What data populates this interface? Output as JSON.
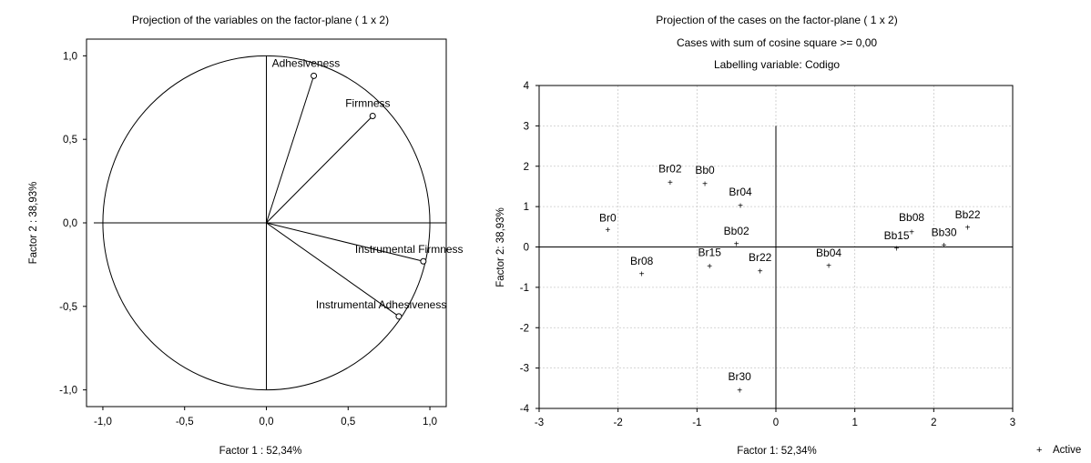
{
  "chart_data": [
    {
      "type": "scatter",
      "title": "Projection of the variables on the factor-plane (  1 x   2)",
      "xlabel": "Factor 1 : 52,34%",
      "ylabel": "Factor 2 : 38,93%",
      "xlim": [
        -1.1,
        1.1
      ],
      "ylim": [
        -1.1,
        1.1
      ],
      "xticks": [
        "-1,0",
        "-0,5",
        "0,0",
        "0,5",
        "1,0"
      ],
      "xtick_values": [
        -1,
        -0.5,
        0,
        0.5,
        1
      ],
      "yticks": [
        "1,0",
        "0,5",
        "0,0",
        "-0,5",
        "-1,0"
      ],
      "ytick_values": [
        1,
        0.5,
        0,
        -0.5,
        -1
      ],
      "unit_circle": true,
      "points": [
        {
          "label": "Adhesiveness",
          "x": 0.29,
          "y": 0.88
        },
        {
          "label": "Firmness",
          "x": 0.65,
          "y": 0.64
        },
        {
          "label": "Instrumental Firmness",
          "x": 0.96,
          "y": -0.23
        },
        {
          "label": "Instrumental Adhesiveness",
          "x": 0.81,
          "y": -0.56
        }
      ]
    },
    {
      "type": "scatter",
      "title": "Projection of the cases on the factor-plane (  1 x   2)",
      "subtitle": "Cases with sum of cosine square >=  0,00",
      "subtitle2": "Labelling variable: Codigo",
      "xlabel": "Factor 1: 52,34%",
      "ylabel": "Factor 2: 38,93%",
      "xlim": [
        -3,
        3
      ],
      "ylim": [
        -4,
        4
      ],
      "xticks": [
        "-3",
        "-2",
        "-1",
        "0",
        "1",
        "2",
        "3"
      ],
      "xtick_values": [
        -3,
        -2,
        -1,
        0,
        1,
        2,
        3
      ],
      "yticks": [
        "4",
        "3",
        "2",
        "1",
        "0",
        "-1",
        "-2",
        "-3",
        "-4"
      ],
      "ytick_values": [
        4,
        3,
        2,
        1,
        0,
        -1,
        -2,
        -3,
        -4
      ],
      "grid": true,
      "legend": {
        "label": "Active",
        "position": "bottom-right"
      },
      "points": [
        {
          "label": "Br0",
          "x": -2.13,
          "y": 0.43
        },
        {
          "label": "Br02",
          "x": -1.34,
          "y": 1.6
        },
        {
          "label": "Bb0",
          "x": -0.9,
          "y": 1.57
        },
        {
          "label": "Br04",
          "x": -0.45,
          "y": 1.02
        },
        {
          "label": "Bb02",
          "x": -0.5,
          "y": 0.08
        },
        {
          "label": "Br08",
          "x": -1.7,
          "y": -0.67
        },
        {
          "label": "Br15",
          "x": -0.84,
          "y": -0.47
        },
        {
          "label": "Br22",
          "x": -0.2,
          "y": -0.6
        },
        {
          "label": "Br30",
          "x": -0.46,
          "y": -3.55
        },
        {
          "label": "Bb04",
          "x": 0.67,
          "y": -0.46
        },
        {
          "label": "Bb08",
          "x": 1.72,
          "y": 0.37
        },
        {
          "label": "Bb15",
          "x": 1.53,
          "y": -0.03
        },
        {
          "label": "Bb30",
          "x": 2.13,
          "y": 0.04
        },
        {
          "label": "Bb22",
          "x": 2.43,
          "y": 0.48
        }
      ]
    }
  ]
}
